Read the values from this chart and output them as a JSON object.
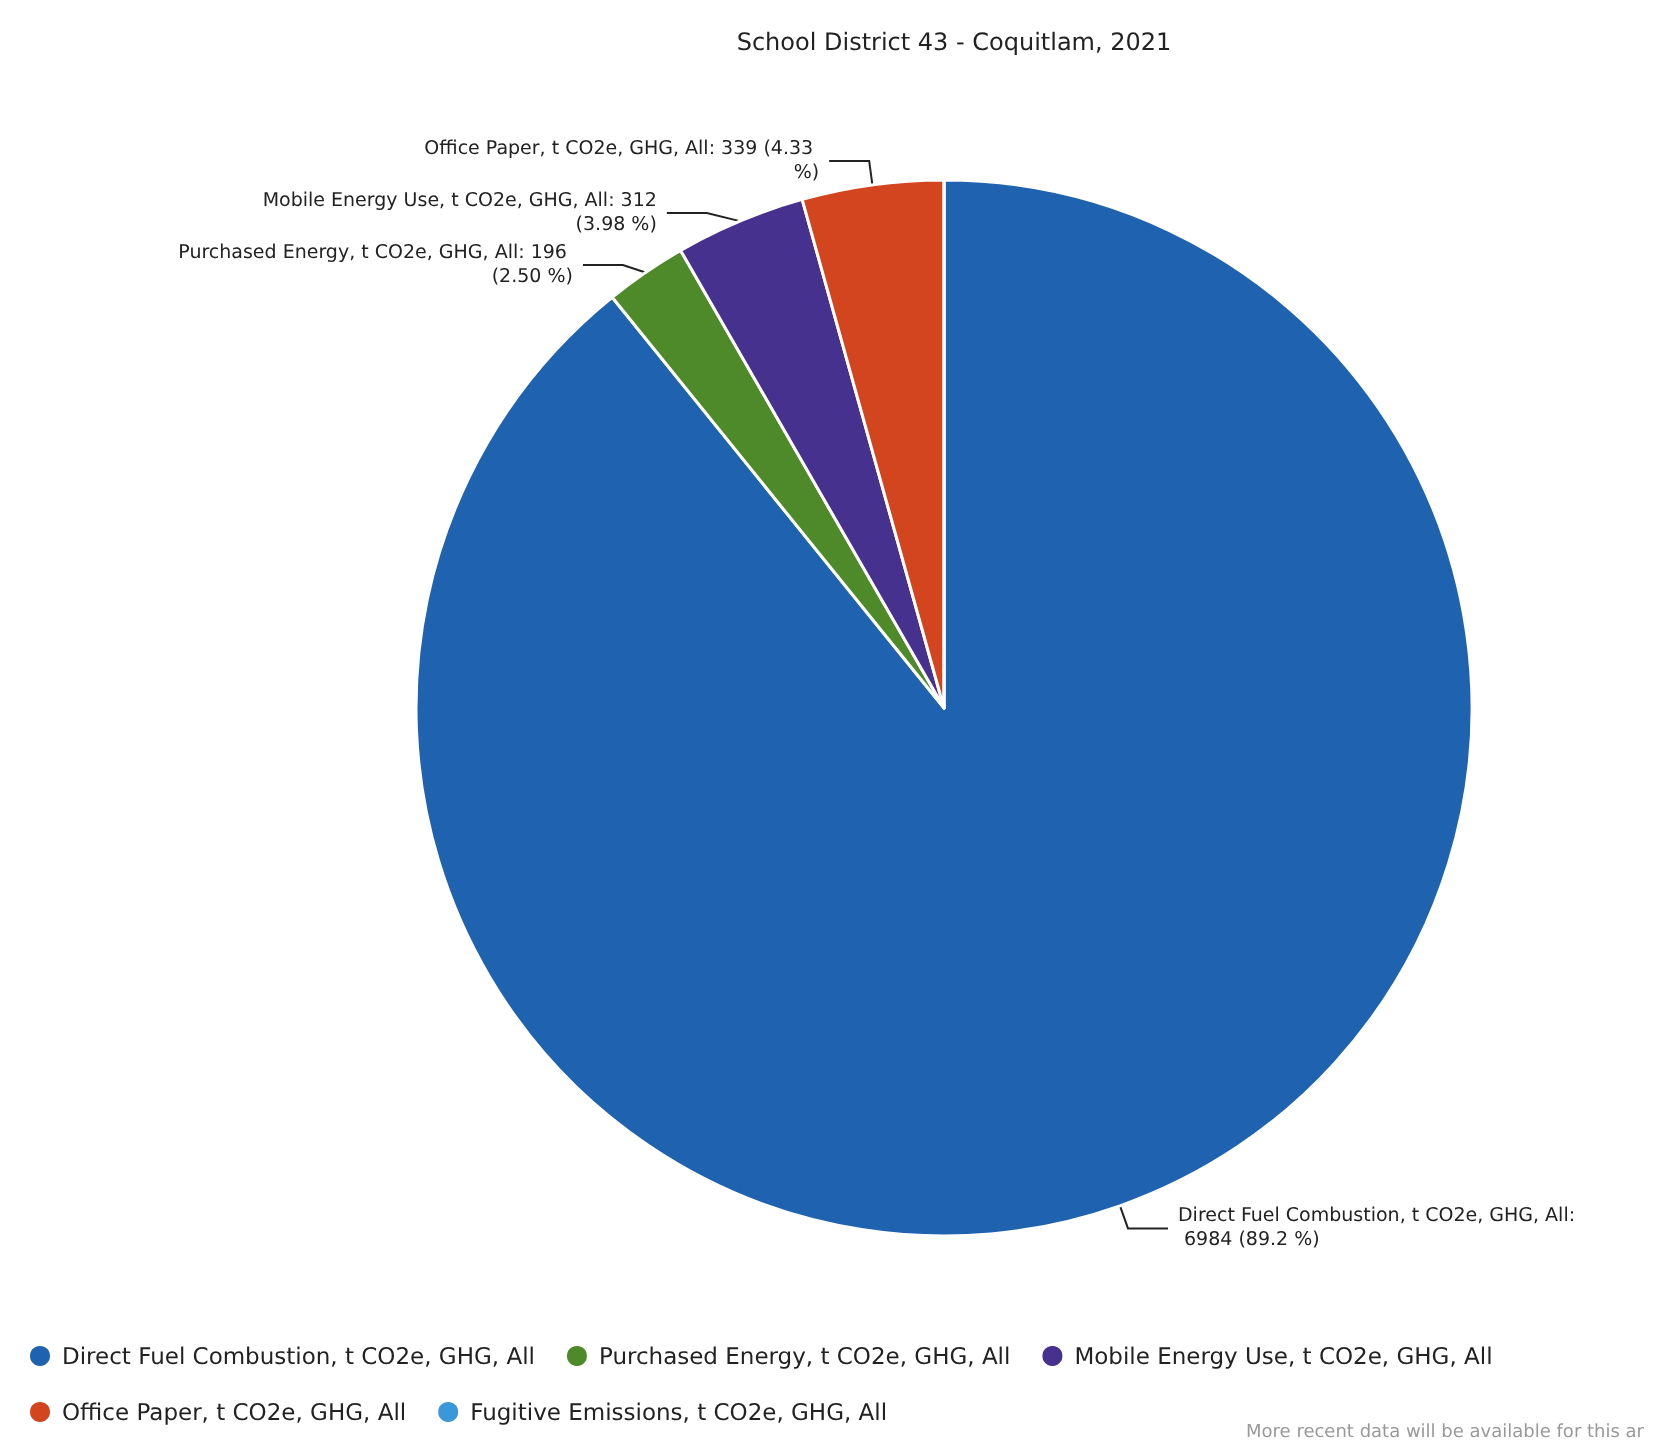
{
  "chart_data": {
    "type": "pie",
    "title": "School District 43 - Coquitlam, 2021",
    "categories": [
      "Direct Fuel Combustion, t CO2e, GHG, All",
      "Purchased Energy, t CO2e, GHG, All",
      "Mobile Energy Use, t CO2e, GHG, All",
      "Office Paper, t CO2e, GHG, All",
      "Fugitive Emissions, t CO2e, GHG, All"
    ],
    "values": [
      6984,
      196,
      312,
      339,
      0
    ],
    "value_labels": [
      "Direct Fuel Combustion, t CO2e, GHG, All: 6984 (89.2 %)",
      "Purchased Energy, t CO2e, GHG, All: 196 (2.50 %)",
      "Mobile Energy Use, t CO2e, GHG, All: 312 (3.98 %)",
      "Office Paper, t CO2e, GHG, All: 339 (4.33 %)",
      null
    ],
    "colors": [
      "#1f63b0",
      "#4f8a2a",
      "#46318f",
      "#d2451e",
      "#3a98d8"
    ],
    "legend": "bottom",
    "annotations": [
      "More recent data will be available for this ar"
    ]
  }
}
